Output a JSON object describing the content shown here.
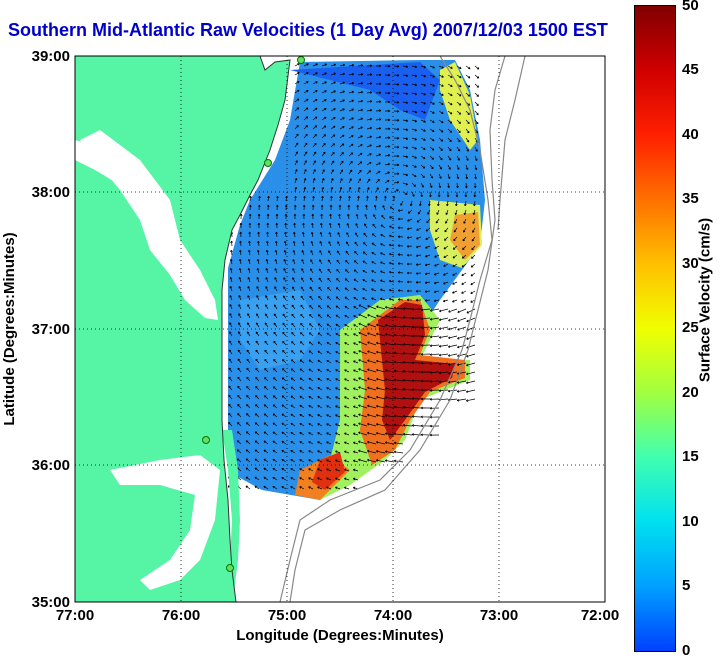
{
  "title": "Southern Mid-Atlantic Raw Velocities (1 Day Avg) 2007/12/03 1500 EST",
  "x_axis_label": "Longitude (Degrees:Minutes)",
  "y_axis_label": "Latitude (Degrees:Minutes)",
  "x_ticks": [
    "77:00",
    "76:00",
    "75:00",
    "74:00",
    "73:00",
    "72:00"
  ],
  "y_ticks": [
    "39:00",
    "38:00",
    "37:00",
    "36:00",
    "35:00"
  ],
  "colorbar": {
    "label": "Surface Velocity (cm/s)",
    "ticks": [
      "50",
      "45",
      "40",
      "35",
      "30",
      "25",
      "20",
      "15",
      "10",
      "5",
      "0"
    ],
    "colors": [
      "#0040ff",
      "#00a0ff",
      "#00e0f0",
      "#40ffb0",
      "#a0ff40",
      "#f0ff00",
      "#ffc000",
      "#ff7000",
      "#ff2000",
      "#d00000",
      "#800000"
    ]
  },
  "colors": {
    "land": "#55f5a5",
    "water_bg": "#ffffff",
    "title": "#0000cc"
  },
  "map": {
    "lon_range": [
      -77,
      -72
    ],
    "lat_range": [
      35,
      39
    ],
    "velocity_range_cm_s": [
      0,
      50
    ]
  }
}
